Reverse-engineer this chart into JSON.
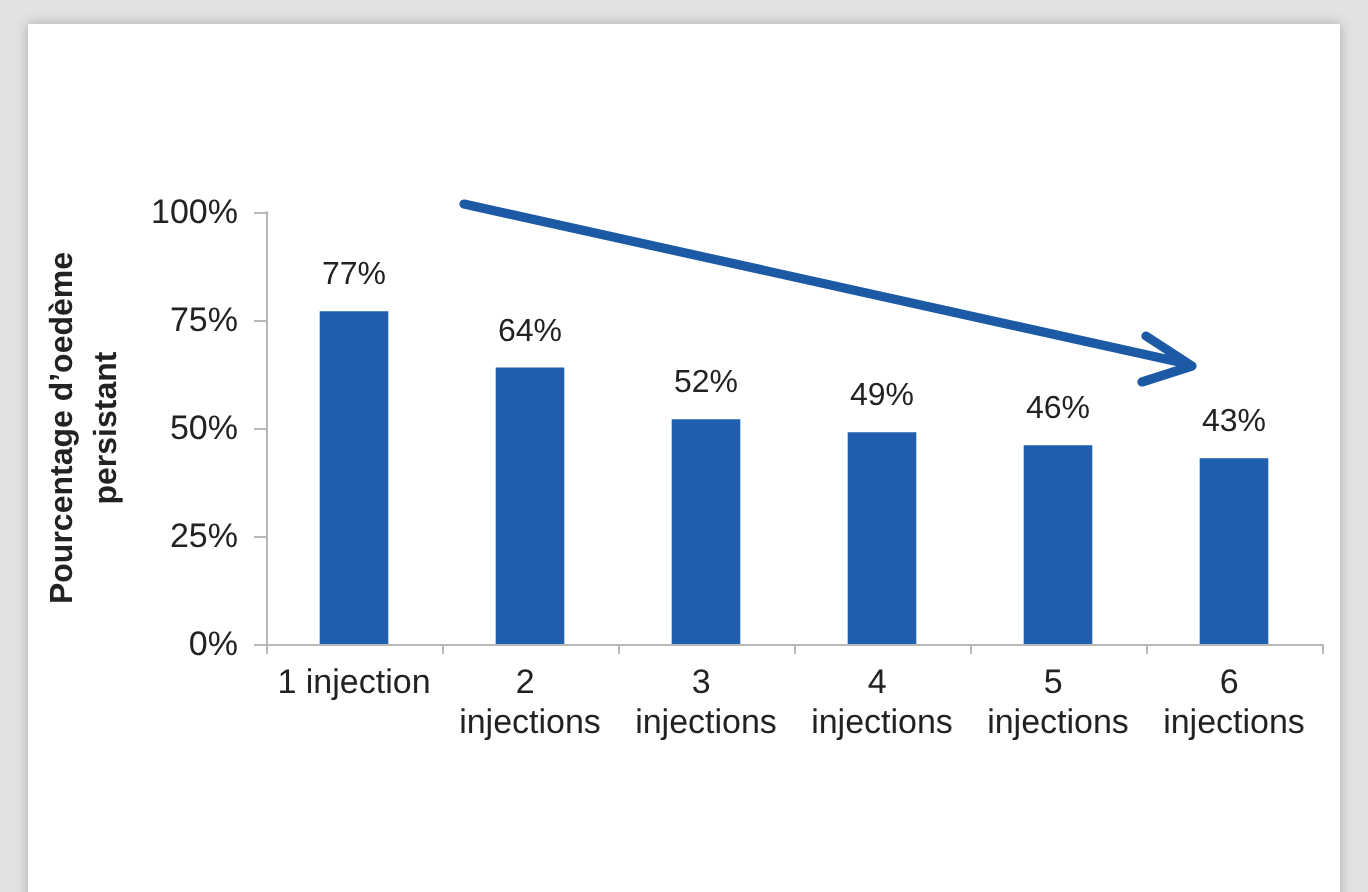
{
  "chart_data": {
    "type": "bar",
    "ylabel": "Pourcentage d’oedème persistant",
    "categories": [
      "1 injection",
      "2 injections",
      "3 injections",
      "4 injections",
      "5 injections",
      "6 injections"
    ],
    "values": [
      77,
      64,
      52,
      49,
      46,
      43
    ],
    "value_labels": [
      "77%",
      "64%",
      "52%",
      "49%",
      "46%",
      "43%"
    ],
    "color": "#1f5fad",
    "ylim": [
      0,
      100
    ],
    "yticks": [
      {
        "value": 0,
        "label": "0%"
      },
      {
        "value": 25,
        "label": "25%"
      },
      {
        "value": 50,
        "label": "50%"
      },
      {
        "value": 75,
        "label": "75%"
      },
      {
        "value": 100,
        "label": "100%"
      }
    ],
    "grid": false
  }
}
